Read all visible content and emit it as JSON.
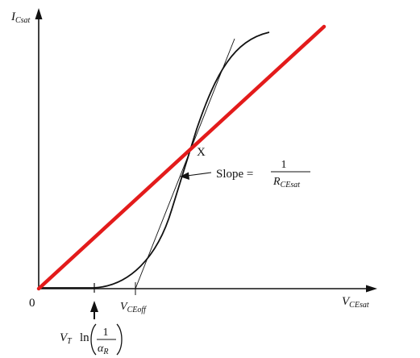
{
  "diagram": {
    "y_axis_label": {
      "main": "I",
      "sub": "Csat"
    },
    "x_axis_label": {
      "main": "V",
      "sub": "CEsat"
    },
    "origin_label": "0",
    "intersection_label": "X",
    "slope_label": {
      "prefix": "Slope =",
      "numerator": "1",
      "denominator_main": "R",
      "denominator_sub": "CEsat"
    },
    "offset_label": {
      "main": "V",
      "sub": "CEoff"
    },
    "threshold_label": {
      "main": "V",
      "sub": "T",
      "func": "ln",
      "numerator": "1",
      "denominator_main": "α",
      "denominator_sub": "R"
    },
    "colors": {
      "curve": "#111111",
      "load_line": "#e31b1b",
      "axes": "#111111"
    }
  }
}
